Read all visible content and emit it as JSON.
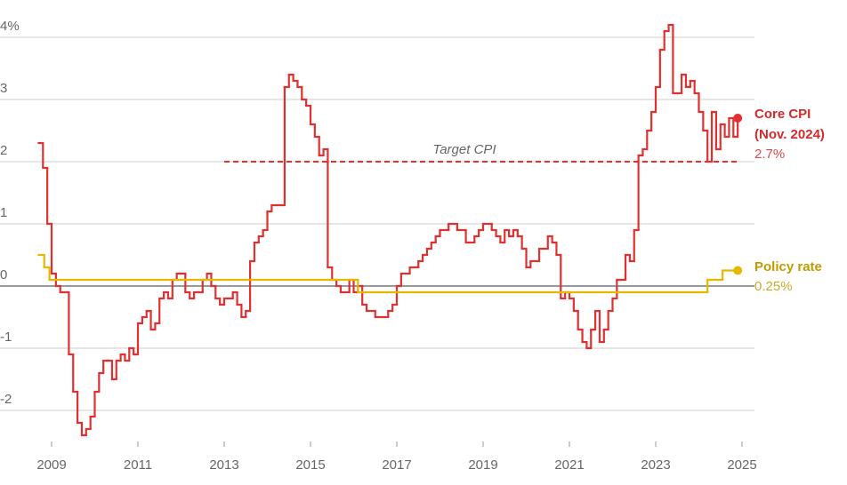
{
  "chart_data": {
    "type": "line",
    "step": true,
    "xlim": [
      2008.5,
      2025.2
    ],
    "xticks": [
      2009,
      2011,
      2013,
      2015,
      2017,
      2019,
      2021,
      2023,
      2025
    ],
    "ylim": [
      -2.5,
      4.3
    ],
    "yticks": [
      {
        "value": 4,
        "label": "4%"
      },
      3,
      2,
      1,
      0,
      -1,
      -2
    ],
    "grid": true,
    "target": {
      "label": "Target CPI",
      "value": 2,
      "start": 2013,
      "end": 2024.9,
      "color": "#e03030"
    },
    "series": [
      {
        "name": "Core CPI",
        "note": "(Nov. 2024)",
        "end_label": "2.7%",
        "color": "#e03030",
        "x": [
          2008.7,
          2008.8,
          2008.9,
          2009.0,
          2009.1,
          2009.2,
          2009.3,
          2009.4,
          2009.5,
          2009.6,
          2009.7,
          2009.8,
          2009.9,
          2010.0,
          2010.1,
          2010.2,
          2010.3,
          2010.4,
          2010.5,
          2010.6,
          2010.7,
          2010.8,
          2010.9,
          2011.0,
          2011.1,
          2011.2,
          2011.3,
          2011.4,
          2011.5,
          2011.6,
          2011.7,
          2011.8,
          2011.9,
          2012.0,
          2012.1,
          2012.2,
          2012.3,
          2012.4,
          2012.5,
          2012.6,
          2012.7,
          2012.8,
          2012.9,
          2013.0,
          2013.1,
          2013.2,
          2013.3,
          2013.4,
          2013.5,
          2013.6,
          2013.7,
          2013.8,
          2013.9,
          2014.0,
          2014.1,
          2014.2,
          2014.3,
          2014.4,
          2014.5,
          2014.6,
          2014.7,
          2014.8,
          2014.9,
          2015.0,
          2015.1,
          2015.2,
          2015.3,
          2015.4,
          2015.5,
          2015.6,
          2015.7,
          2015.8,
          2015.9,
          2016.0,
          2016.1,
          2016.2,
          2016.3,
          2016.5,
          2016.7,
          2016.8,
          2016.9,
          2017.0,
          2017.1,
          2017.3,
          2017.5,
          2017.6,
          2017.7,
          2017.8,
          2017.9,
          2018.0,
          2018.2,
          2018.4,
          2018.6,
          2018.8,
          2018.9,
          2019.0,
          2019.2,
          2019.3,
          2019.4,
          2019.5,
          2019.6,
          2019.7,
          2019.8,
          2019.9,
          2020.0,
          2020.1,
          2020.3,
          2020.5,
          2020.6,
          2020.7,
          2020.8,
          2020.9,
          2021.0,
          2021.1,
          2021.2,
          2021.3,
          2021.4,
          2021.5,
          2021.6,
          2021.7,
          2021.8,
          2021.9,
          2022.0,
          2022.1,
          2022.2,
          2022.3,
          2022.4,
          2022.5,
          2022.6,
          2022.7,
          2022.8,
          2022.9,
          2023.0,
          2023.1,
          2023.2,
          2023.3,
          2023.4,
          2023.5,
          2023.6,
          2023.7,
          2023.8,
          2023.9,
          2024.0,
          2024.1,
          2024.2,
          2024.3,
          2024.4,
          2024.5,
          2024.6,
          2024.7,
          2024.8,
          2024.9
        ],
        "values": [
          2.3,
          1.9,
          1.0,
          0.2,
          0.0,
          -0.1,
          -0.1,
          -1.1,
          -1.7,
          -2.2,
          -2.4,
          -2.3,
          -2.1,
          -1.7,
          -1.4,
          -1.2,
          -1.2,
          -1.5,
          -1.2,
          -1.1,
          -1.2,
          -1.0,
          -1.1,
          -0.6,
          -0.5,
          -0.4,
          -0.7,
          -0.6,
          -0.2,
          -0.1,
          -0.2,
          0.1,
          0.2,
          0.2,
          -0.1,
          -0.2,
          -0.1,
          -0.1,
          0.1,
          0.2,
          0.0,
          -0.2,
          -0.3,
          -0.2,
          -0.2,
          -0.1,
          -0.3,
          -0.5,
          -0.4,
          0.4,
          0.7,
          0.8,
          0.9,
          1.2,
          1.3,
          1.3,
          1.3,
          3.2,
          3.4,
          3.3,
          3.2,
          3.0,
          2.9,
          2.6,
          2.4,
          2.1,
          2.2,
          0.3,
          0.1,
          0.0,
          -0.1,
          -0.1,
          0.1,
          -0.1,
          0.0,
          -0.3,
          -0.4,
          -0.5,
          -0.5,
          -0.4,
          -0.3,
          0.0,
          0.2,
          0.3,
          0.4,
          0.5,
          0.6,
          0.7,
          0.8,
          0.9,
          1.0,
          0.9,
          0.7,
          0.8,
          0.9,
          1.0,
          0.9,
          0.8,
          0.7,
          0.9,
          0.8,
          0.9,
          0.8,
          0.6,
          0.3,
          0.4,
          0.6,
          0.8,
          0.7,
          0.5,
          -0.2,
          -0.1,
          -0.2,
          -0.4,
          -0.7,
          -0.9,
          -1.0,
          -0.7,
          -0.4,
          -0.9,
          -0.7,
          -0.4,
          -0.2,
          0.1,
          0.1,
          0.5,
          0.4,
          0.9,
          2.1,
          2.2,
          2.5,
          2.8,
          3.2,
          3.8,
          4.1,
          4.2,
          3.1,
          3.1,
          3.4,
          3.2,
          3.3,
          3.1,
          2.8,
          2.5,
          2.0,
          2.8,
          2.2,
          2.6,
          2.4,
          2.7,
          2.4,
          2.7
        ]
      },
      {
        "name": "Policy rate",
        "end_label": "0.25%",
        "color": "#e6b800",
        "x": [
          2008.7,
          2008.83,
          2008.95,
          2016.1,
          2024.2,
          2024.55,
          2024.9
        ],
        "values": [
          0.5,
          0.3,
          0.1,
          -0.1,
          0.1,
          0.25,
          0.25
        ]
      }
    ]
  }
}
